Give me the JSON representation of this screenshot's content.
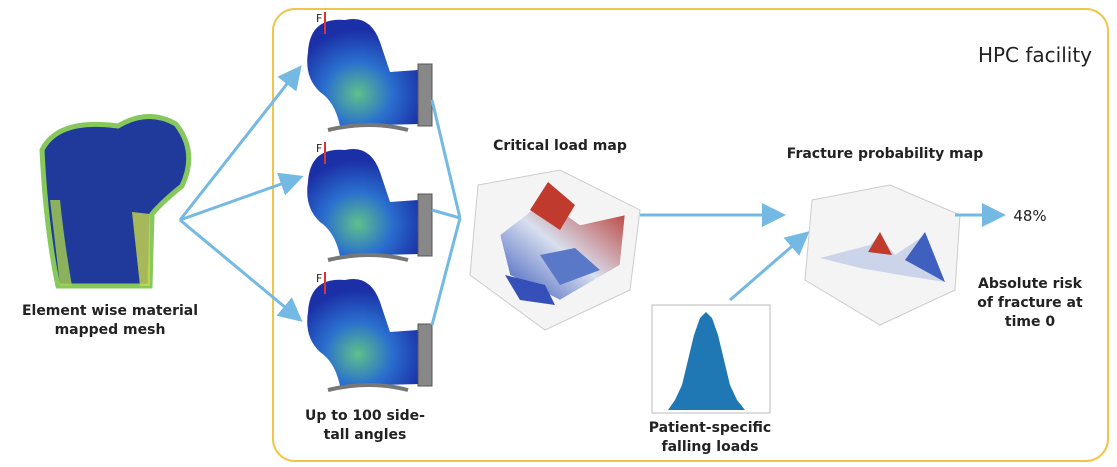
{
  "panel_title": "HPC facility",
  "mesh": {
    "label": [
      "Element wise material",
      "mapped mesh"
    ]
  },
  "simulations": {
    "force_labels": [
      "F",
      "F",
      "F"
    ],
    "label": [
      "Up to 100 side-",
      "tall angles"
    ]
  },
  "critical_load_map": {
    "title": "Critical load map"
  },
  "falling_loads": {
    "label": [
      "Patient-specific",
      "falling loads"
    ]
  },
  "fracture_probability_map": {
    "title": "Fracture probability map"
  },
  "result": {
    "value": "48%",
    "label": [
      "Absolute risk",
      "of fracture at",
      "time 0"
    ]
  }
}
